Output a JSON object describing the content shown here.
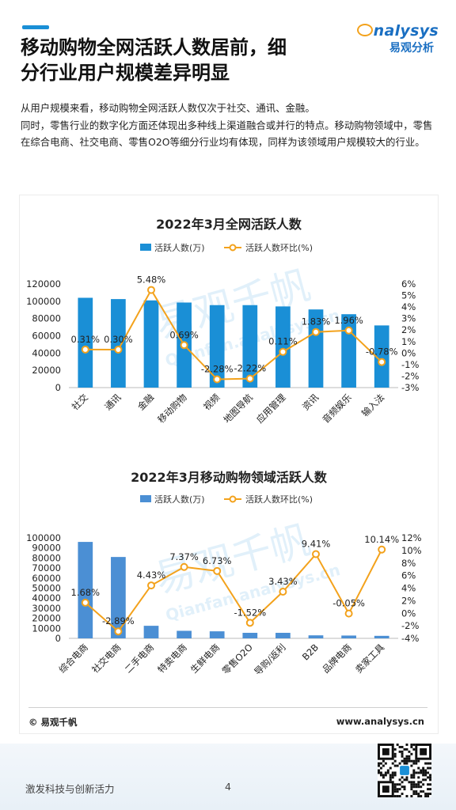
{
  "header": {
    "title_line1": "移动购物全网活跃人数居前，细",
    "title_line2": "分行业用户规模差异明显",
    "brand_en": "nalysys",
    "brand_cn": "易观分析"
  },
  "intro": [
    "从用户规模来看，移动购物全网活跃人数仅次于社交、通讯、金融。",
    "同时，零售行业的数字化方面还体现出多种线上渠道融合或并行的特点。移动购物领域中，零售在综合电商、社交电商、零售O2O等细分行业均有体现，同样为该领域用户规模较大的行业。"
  ],
  "watermark": {
    "cn": "易观千帆",
    "en": "Qianfan.analysys.cn"
  },
  "chart_data": [
    {
      "type": "bar",
      "title": "2022年3月全网活跃人数",
      "categories": [
        "社交",
        "通讯",
        "金融",
        "移动购物",
        "视频",
        "地图导航",
        "应用管理",
        "资讯",
        "音频娱乐",
        "输入法"
      ],
      "series": [
        {
          "name": "活跃人数(万)",
          "type": "bar",
          "axis": "left",
          "values": [
            104000,
            102500,
            101000,
            98500,
            95500,
            95500,
            94000,
            90500,
            85000,
            72000
          ]
        },
        {
          "name": "活跃人数环比(%)",
          "type": "line",
          "axis": "right",
          "values": [
            0.31,
            0.3,
            5.48,
            0.69,
            -2.28,
            -2.22,
            0.11,
            1.83,
            1.96,
            -0.78
          ]
        }
      ],
      "data_labels": [
        "0.31%",
        "0.30%",
        "5.48%",
        "0.69%",
        "-2.28%",
        "-2.22%",
        "0.11%",
        "1.83%",
        "1.96%",
        "-0.78%"
      ],
      "ylim_left": [
        0,
        120000
      ],
      "yticks_left": [
        "0",
        "20000",
        "40000",
        "60000",
        "80000",
        "100000",
        "120000"
      ],
      "ylim_right": [
        -3,
        6
      ],
      "yticks_right": [
        "-3%",
        "-2%",
        "-1%",
        "0%",
        "1%",
        "2%",
        "3%",
        "4%",
        "5%",
        "6%"
      ],
      "legend": "top",
      "grid": false,
      "colors": {
        "bar": "#1a8fd6",
        "line": "#f3a21c"
      }
    },
    {
      "type": "bar",
      "title": "2022年3月移动购物领域活跃人数",
      "categories": [
        "综合电商",
        "社交电商",
        "二手电商",
        "特卖电商",
        "生鲜电商",
        "零售O2O",
        "导购/返利",
        "B2B",
        "品牌电商",
        "卖家工具"
      ],
      "series": [
        {
          "name": "活跃人数(万)",
          "type": "bar",
          "axis": "left",
          "values": [
            96000,
            81000,
            12500,
            7500,
            7000,
            5500,
            5500,
            3000,
            2800,
            2500
          ]
        },
        {
          "name": "活跃人数环比(%)",
          "type": "line",
          "axis": "right",
          "values": [
            1.68,
            -2.89,
            4.43,
            7.37,
            6.73,
            -1.52,
            3.43,
            9.41,
            -0.05,
            10.14
          ]
        }
      ],
      "data_labels": [
        "1.68%",
        "-2.89%",
        "4.43%",
        "7.37%",
        "6.73%",
        "-1.52%",
        "3.43%",
        "9.41%",
        "-0.05%",
        "10.14%"
      ],
      "ylim_left": [
        0,
        100000
      ],
      "yticks_left": [
        "0",
        "10000",
        "20000",
        "30000",
        "40000",
        "50000",
        "60000",
        "70000",
        "80000",
        "90000",
        "100000"
      ],
      "ylim_right": [
        -4,
        12
      ],
      "yticks_right": [
        "-4%",
        "-2%",
        "0%",
        "2%",
        "4%",
        "6%",
        "8%",
        "10%",
        "12%"
      ],
      "legend": "top",
      "grid": false,
      "colors": {
        "bar": "#4b8fd4",
        "line": "#f3a21c"
      }
    }
  ],
  "footer": {
    "copyright": "© 易观千帆",
    "site": "www.analysys.cn",
    "slogan": "激发科技与创新活力",
    "page_number": "4"
  }
}
